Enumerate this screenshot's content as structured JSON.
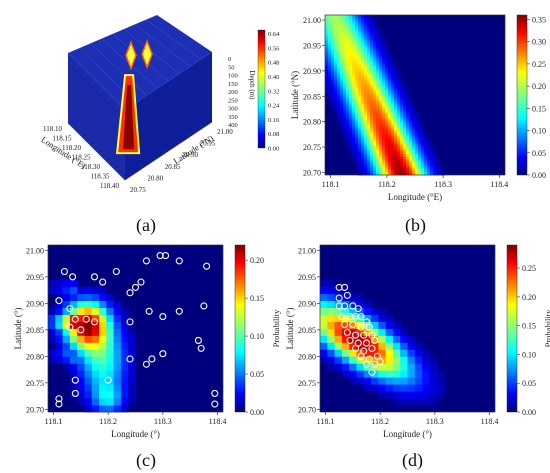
{
  "panel_labels": [
    "(a)",
    "(b)",
    "(c)",
    "(d)"
  ],
  "colormap": [
    "#00007f",
    "#0000ff",
    "#0080ff",
    "#00ffff",
    "#80ff80",
    "#ffff00",
    "#ff8000",
    "#ff0000",
    "#7f0000"
  ],
  "chart_data": [
    {
      "id": "a",
      "type": "heatmap",
      "title": "",
      "xlabel": "Longitude (°E)",
      "ylabel": "Latitude (°N)",
      "zlabel": "Depth (m)",
      "x_ticks": [
        "118.10",
        "118.15",
        "118.20",
        "118.25",
        "118.30",
        "118.35",
        "118.40"
      ],
      "y_ticks": [
        "20.75",
        "20.80",
        "20.85",
        "20.90",
        "20.95",
        "21.00"
      ],
      "z_ticks": [
        "0",
        "50",
        "100",
        "150",
        "200",
        "250",
        "300",
        "350",
        "400"
      ],
      "colorbar": {
        "label": "Depth (m)",
        "min": 0,
        "max": 0.66,
        "ticks": [
          "0.00",
          "0.08",
          "0.16",
          "0.24",
          "0.32",
          "0.40",
          "0.48",
          "0.56",
          "0.64"
        ]
      },
      "features": [
        {
          "x": 118.12,
          "y": 20.92,
          "value": 0.5
        },
        {
          "x": 118.15,
          "y": 20.95,
          "value": 0.45
        },
        {
          "x": 118.33,
          "y": 20.8,
          "value": 0.64
        }
      ]
    },
    {
      "id": "b",
      "type": "heatmap",
      "title": "",
      "xlabel": "Longitude (°E)",
      "ylabel": "Latitude (°N)",
      "xlim": [
        118.09,
        118.41
      ],
      "ylim": [
        20.695,
        21.01
      ],
      "x_ticks": [
        "118.1",
        "118.2",
        "118.3",
        "118.4"
      ],
      "y_ticks": [
        "20.70",
        "20.75",
        "20.80",
        "20.85",
        "20.90",
        "20.95",
        "21.00"
      ],
      "colorbar": {
        "min": 0,
        "max": 0.36,
        "ticks": [
          "0.00",
          "0.05",
          "0.10",
          "0.15",
          "0.20",
          "0.25",
          "0.30",
          "0.35"
        ]
      },
      "ridge": {
        "start": [
          118.11,
          21.0
        ],
        "end": [
          118.225,
          20.7
        ],
        "peak_value": 0.35
      }
    },
    {
      "id": "c",
      "type": "heatmap",
      "title": "",
      "xlabel": "Longitude (°)",
      "ylabel": "Latitude (°)",
      "xlim": [
        118.09,
        118.41
      ],
      "ylim": [
        20.695,
        21.01
      ],
      "x_ticks": [
        "118.1",
        "118.2",
        "118.3",
        "118.4"
      ],
      "y_ticks": [
        "20.70",
        "20.75",
        "20.80",
        "20.85",
        "20.90",
        "20.95",
        "21.00"
      ],
      "colorbar": {
        "label": "Probability",
        "min": 0,
        "max": 0.22,
        "ticks": [
          "0.00",
          "0.05",
          "0.10",
          "0.15",
          "0.20"
        ]
      },
      "peak": {
        "x": 118.16,
        "y": 20.86,
        "value": 0.21
      },
      "points": [
        [
          118.12,
          20.96
        ],
        [
          118.135,
          20.95
        ],
        [
          118.175,
          20.95
        ],
        [
          118.19,
          20.94
        ],
        [
          118.215,
          20.96
        ],
        [
          118.24,
          20.92
        ],
        [
          118.25,
          20.93
        ],
        [
          118.26,
          20.94
        ],
        [
          118.27,
          20.98
        ],
        [
          118.295,
          20.99
        ],
        [
          118.305,
          20.99
        ],
        [
          118.33,
          20.98
        ],
        [
          118.38,
          20.97
        ],
        [
          118.11,
          20.905
        ],
        [
          118.13,
          20.89
        ],
        [
          118.14,
          20.87
        ],
        [
          118.16,
          20.87
        ],
        [
          118.175,
          20.865
        ],
        [
          118.13,
          20.855
        ],
        [
          118.15,
          20.85
        ],
        [
          118.24,
          20.865
        ],
        [
          118.275,
          20.885
        ],
        [
          118.3,
          20.875
        ],
        [
          118.33,
          20.885
        ],
        [
          118.375,
          20.895
        ],
        [
          118.365,
          20.83
        ],
        [
          118.37,
          20.815
        ],
        [
          118.3,
          20.805
        ],
        [
          118.24,
          20.795
        ],
        [
          118.27,
          20.785
        ],
        [
          118.28,
          20.795
        ],
        [
          118.14,
          20.755
        ],
        [
          118.2,
          20.755
        ],
        [
          118.14,
          20.73
        ],
        [
          118.11,
          20.72
        ],
        [
          118.11,
          20.71
        ],
        [
          118.395,
          20.73
        ],
        [
          118.395,
          20.71
        ]
      ]
    },
    {
      "id": "d",
      "type": "heatmap",
      "title": "",
      "xlabel": "Longitude (°)",
      "ylabel": "Latitude (°)",
      "xlim": [
        118.09,
        118.41
      ],
      "ylim": [
        20.695,
        21.01
      ],
      "x_ticks": [
        "118.1",
        "118.2",
        "118.3",
        "118.4"
      ],
      "y_ticks": [
        "20.70",
        "20.75",
        "20.80",
        "20.85",
        "20.90",
        "20.95",
        "21.00"
      ],
      "colorbar": {
        "label": "Probability",
        "min": 0,
        "max": 0.29,
        "ticks": [
          "0.00",
          "0.05",
          "0.10",
          "0.15",
          "0.20",
          "0.25"
        ]
      },
      "peak": {
        "x": 118.16,
        "y": 20.83,
        "value": 0.28
      },
      "points": [
        [
          118.125,
          20.93
        ],
        [
          118.135,
          20.93
        ],
        [
          118.125,
          20.91
        ],
        [
          118.14,
          20.915
        ],
        [
          118.125,
          20.895
        ],
        [
          118.135,
          20.895
        ],
        [
          118.15,
          20.895
        ],
        [
          118.16,
          20.89
        ],
        [
          118.13,
          20.875
        ],
        [
          118.145,
          20.875
        ],
        [
          118.155,
          20.875
        ],
        [
          118.165,
          20.875
        ],
        [
          118.175,
          20.865
        ],
        [
          118.135,
          20.86
        ],
        [
          118.15,
          20.86
        ],
        [
          118.165,
          20.855
        ],
        [
          118.18,
          20.855
        ],
        [
          118.14,
          20.845
        ],
        [
          118.155,
          20.84
        ],
        [
          118.17,
          20.84
        ],
        [
          118.185,
          20.84
        ],
        [
          118.145,
          20.83
        ],
        [
          118.16,
          20.825
        ],
        [
          118.175,
          20.825
        ],
        [
          118.19,
          20.83
        ],
        [
          118.155,
          20.815
        ],
        [
          118.17,
          20.81
        ],
        [
          118.185,
          20.815
        ],
        [
          118.165,
          20.8
        ],
        [
          118.18,
          20.795
        ],
        [
          118.195,
          20.8
        ],
        [
          118.175,
          20.785
        ],
        [
          118.19,
          20.785
        ],
        [
          118.2,
          20.79
        ],
        [
          118.185,
          20.77
        ]
      ]
    }
  ]
}
